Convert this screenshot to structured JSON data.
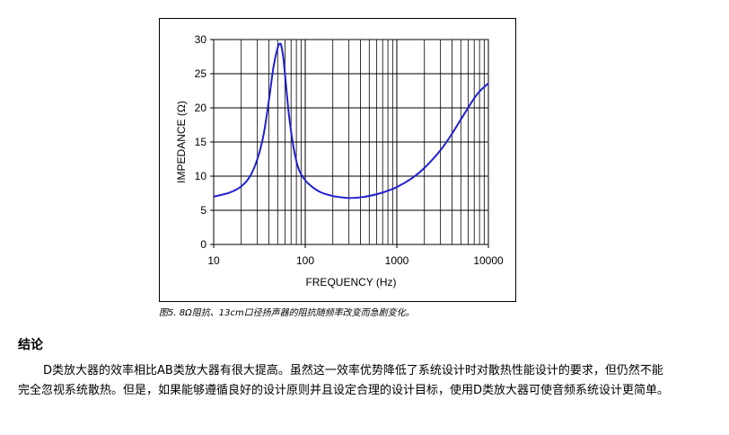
{
  "figure": {
    "caption": "图5. 8Ω阻抗、13cm口径扬声器的阻抗随频率改变而急剧变化。"
  },
  "chart_data": {
    "type": "line",
    "xlabel": "FREQUENCY (Hz)",
    "ylabel": "IMPEDANCE (Ω)",
    "x_scale": "log",
    "xlim": [
      10,
      10000
    ],
    "ylim": [
      0,
      30
    ],
    "x_ticks": [
      10,
      100,
      1000,
      10000
    ],
    "x_tick_labels": [
      "10",
      "100",
      "1000",
      "10000"
    ],
    "y_ticks": [
      0,
      5,
      10,
      15,
      20,
      25,
      30
    ],
    "y_tick_labels": [
      "0",
      "5",
      "10",
      "15",
      "20",
      "25",
      "30"
    ],
    "grid": true,
    "line_color": "#1f1fd0",
    "series": [
      {
        "x": [
          10,
          15,
          20,
          25,
          30,
          35,
          40,
          45,
          50,
          53,
          55,
          58,
          62,
          67,
          75,
          85,
          100,
          120,
          150,
          200,
          250,
          300,
          400,
          500,
          700,
          1000,
          1500,
          2000,
          3000,
          4000,
          5000,
          6000,
          7000,
          8000,
          10000
        ],
        "y": [
          7.0,
          7.6,
          8.5,
          10.0,
          12.5,
          16.0,
          21.0,
          26.0,
          28.8,
          29.4,
          29.0,
          27.0,
          23.0,
          18.5,
          14.0,
          11.0,
          9.4,
          8.4,
          7.6,
          7.1,
          6.9,
          6.8,
          6.9,
          7.1,
          7.6,
          8.4,
          9.8,
          11.2,
          13.8,
          16.2,
          18.3,
          20.0,
          21.4,
          22.4,
          23.6
        ]
      }
    ]
  },
  "section": {
    "title": "结论",
    "paragraph": "D类放大器的效率相比AB类放大器有很大提高。虽然这一效率优势降低了系统设计时对散热性能设计的要求，但仍然不能完全忽视系统散热。但是，如果能够遵循良好的设计原则并且设定合理的设计目标，使用D类放大器可使音频系统设计更简单。"
  }
}
